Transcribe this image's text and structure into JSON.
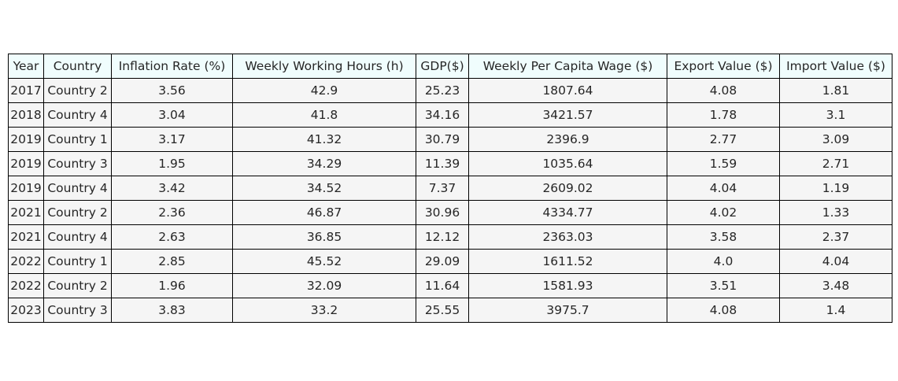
{
  "colors": {
    "header_background": "#f0fdfd",
    "cell_background": "#f5f5f5",
    "border": "#000000",
    "text": "#262626"
  },
  "chart_data": {
    "type": "table",
    "columns": [
      "Year",
      "Country",
      "Inflation Rate (%)",
      "Weekly Working Hours (h)",
      "GDP($)",
      "Weekly Per Capita Wage ($)",
      "Export Value ($)",
      "Import Value ($)"
    ],
    "rows": [
      [
        "2017",
        "Country 2",
        "3.56",
        "42.9",
        "25.23",
        "1807.64",
        "4.08",
        "1.81"
      ],
      [
        "2018",
        "Country 4",
        "3.04",
        "41.8",
        "34.16",
        "3421.57",
        "1.78",
        "3.1"
      ],
      [
        "2019",
        "Country 1",
        "3.17",
        "41.32",
        "30.79",
        "2396.9",
        "2.77",
        "3.09"
      ],
      [
        "2019",
        "Country 3",
        "1.95",
        "34.29",
        "11.39",
        "1035.64",
        "1.59",
        "2.71"
      ],
      [
        "2019",
        "Country 4",
        "3.42",
        "34.52",
        "7.37",
        "2609.02",
        "4.04",
        "1.19"
      ],
      [
        "2021",
        "Country 2",
        "2.36",
        "46.87",
        "30.96",
        "4334.77",
        "4.02",
        "1.33"
      ],
      [
        "2021",
        "Country 4",
        "2.63",
        "36.85",
        "12.12",
        "2363.03",
        "3.58",
        "2.37"
      ],
      [
        "2022",
        "Country 1",
        "2.85",
        "45.52",
        "29.09",
        "1611.52",
        "4.0",
        "4.04"
      ],
      [
        "2022",
        "Country 2",
        "1.96",
        "32.09",
        "11.64",
        "1581.93",
        "3.51",
        "3.48"
      ],
      [
        "2023",
        "Country 3",
        "3.83",
        "33.2",
        "25.55",
        "3975.7",
        "4.08",
        "1.4"
      ]
    ]
  }
}
